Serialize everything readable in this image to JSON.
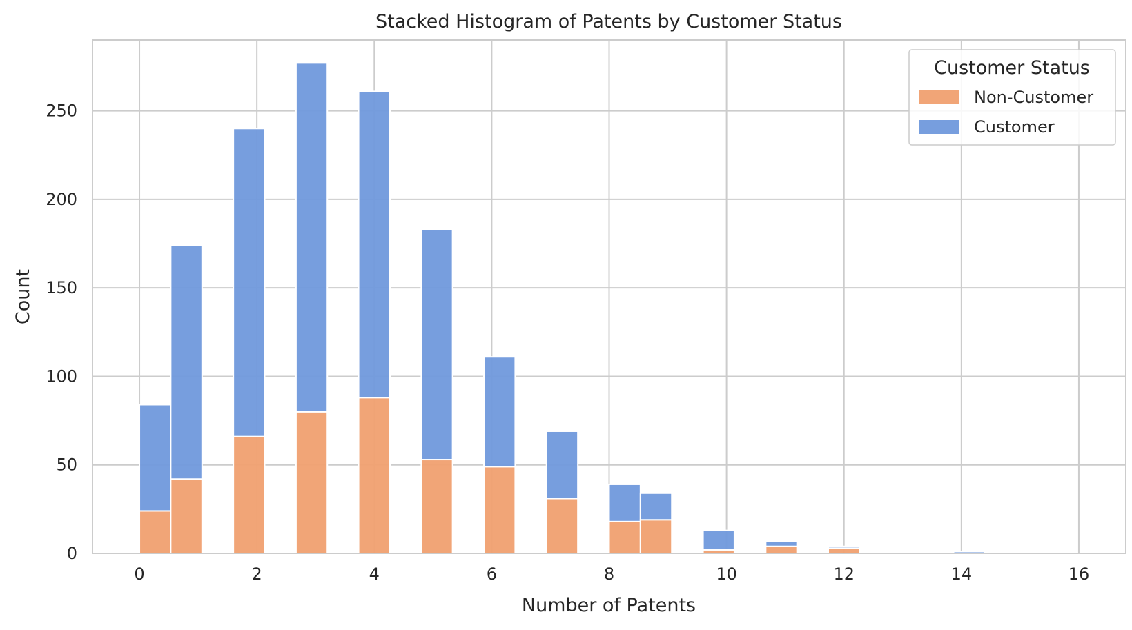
{
  "chart_data": {
    "type": "bar",
    "stacked": true,
    "title": "Stacked Histogram of Patents by Customer Status",
    "xlabel": "Number of Patents",
    "ylabel": "Count",
    "xlim": [
      -0.8,
      16.8
    ],
    "ylim": [
      0,
      290
    ],
    "xticks": [
      0,
      2,
      4,
      6,
      8,
      10,
      12,
      14,
      16
    ],
    "xtick_labels": [
      "0",
      "2",
      "4",
      "6",
      "8",
      "10",
      "12",
      "14",
      "16"
    ],
    "yticks": [
      0,
      50,
      100,
      150,
      200,
      250
    ],
    "ytick_labels": [
      "0",
      "50",
      "100",
      "150",
      "200",
      "250"
    ],
    "grid": true,
    "legend": {
      "title": "Customer Status",
      "placement": "top-right",
      "entries": [
        "Non-Customer",
        "Customer"
      ]
    },
    "bins": [
      {
        "x0": 0.0,
        "x1": 0.533
      },
      {
        "x0": 0.533,
        "x1": 1.067
      },
      {
        "x0": 1.6,
        "x1": 2.133
      },
      {
        "x0": 2.667,
        "x1": 3.2
      },
      {
        "x0": 3.733,
        "x1": 4.267
      },
      {
        "x0": 4.8,
        "x1": 5.333
      },
      {
        "x0": 5.867,
        "x1": 6.4
      },
      {
        "x0": 6.933,
        "x1": 7.467
      },
      {
        "x0": 8.0,
        "x1": 8.533
      },
      {
        "x0": 8.533,
        "x1": 9.067
      },
      {
        "x0": 9.6,
        "x1": 10.133
      },
      {
        "x0": 10.667,
        "x1": 11.2
      },
      {
        "x0": 11.733,
        "x1": 12.267
      },
      {
        "x0": 13.867,
        "x1": 14.4
      }
    ],
    "series": [
      {
        "name": "Non-Customer",
        "color": "#F0A070",
        "values": [
          24,
          42,
          66,
          80,
          88,
          53,
          49,
          31,
          18,
          19,
          2,
          4,
          3,
          0
        ]
      },
      {
        "name": "Customer",
        "color": "#7099DC",
        "values": [
          60,
          132,
          174,
          197,
          173,
          130,
          62,
          38,
          21,
          15,
          11,
          3,
          1,
          1
        ]
      }
    ]
  },
  "colors": {
    "grid": "#cccccc",
    "axes_edge": "#cccccc",
    "text": "#262626",
    "background": "#ffffff"
  }
}
